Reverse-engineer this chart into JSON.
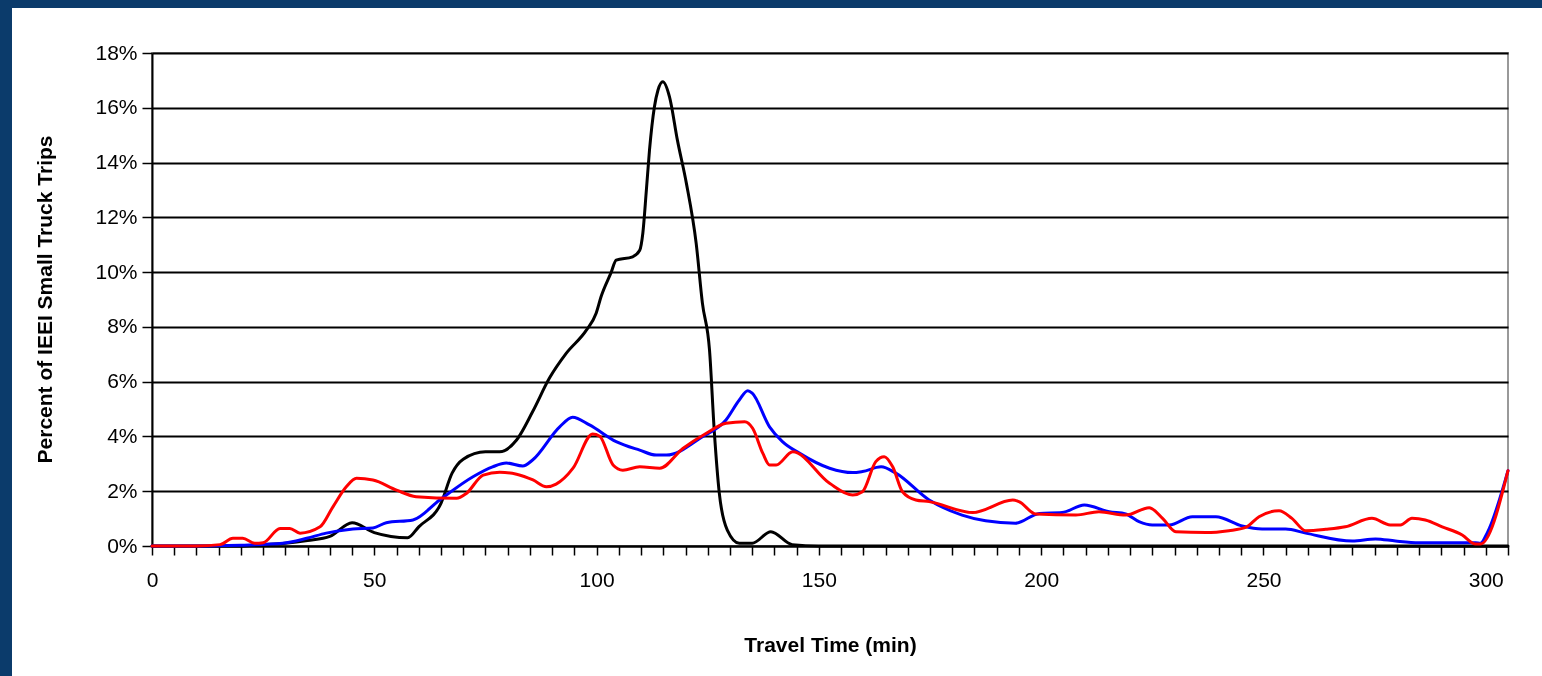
{
  "chart_data": {
    "type": "line",
    "xlabel": "Travel Time (min)",
    "ylabel": "Percent of IEEI Small Truck Trips",
    "xlim": [
      0,
      305
    ],
    "ylim": [
      0,
      18
    ],
    "xticks": [
      0,
      {
        "value": 5,
        "label": null
      },
      {
        "value": 10,
        "label": null
      },
      {
        "value": 15,
        "label": null
      },
      {
        "value": 20,
        "label": null
      },
      {
        "value": 25,
        "label": null
      },
      {
        "value": 30,
        "label": null
      },
      {
        "value": 35,
        "label": null
      },
      {
        "value": 40,
        "label": null
      },
      {
        "value": 45,
        "label": null
      },
      50,
      {
        "value": 55,
        "label": null
      },
      {
        "value": 60,
        "label": null
      },
      {
        "value": 65,
        "label": null
      },
      {
        "value": 70,
        "label": null
      },
      {
        "value": 75,
        "label": null
      },
      {
        "value": 80,
        "label": null
      },
      {
        "value": 85,
        "label": null
      },
      {
        "value": 90,
        "label": null
      },
      {
        "value": 95,
        "label": null
      },
      100,
      {
        "value": 105,
        "label": null
      },
      {
        "value": 110,
        "label": null
      },
      {
        "value": 115,
        "label": null
      },
      {
        "value": 120,
        "label": null
      },
      {
        "value": 125,
        "label": null
      },
      {
        "value": 130,
        "label": null
      },
      {
        "value": 135,
        "label": null
      },
      {
        "value": 140,
        "label": null
      },
      {
        "value": 145,
        "label": null
      },
      150,
      {
        "value": 155,
        "label": null
      },
      {
        "value": 160,
        "label": null
      },
      {
        "value": 165,
        "label": null
      },
      {
        "value": 170,
        "label": null
      },
      {
        "value": 175,
        "label": null
      },
      {
        "value": 180,
        "label": null
      },
      {
        "value": 185,
        "label": null
      },
      {
        "value": 190,
        "label": null
      },
      {
        "value": 195,
        "label": null
      },
      200,
      {
        "value": 205,
        "label": null
      },
      {
        "value": 210,
        "label": null
      },
      {
        "value": 215,
        "label": null
      },
      {
        "value": 220,
        "label": null
      },
      {
        "value": 225,
        "label": null
      },
      {
        "value": 230,
        "label": null
      },
      {
        "value": 235,
        "label": null
      },
      {
        "value": 240,
        "label": null
      },
      {
        "value": 245,
        "label": null
      },
      250,
      {
        "value": 255,
        "label": null
      },
      {
        "value": 260,
        "label": null
      },
      {
        "value": 265,
        "label": null
      },
      {
        "value": 270,
        "label": null
      },
      {
        "value": 275,
        "label": null
      },
      {
        "value": 280,
        "label": null
      },
      {
        "value": 285,
        "label": null
      },
      {
        "value": 290,
        "label": null
      },
      {
        "value": 295,
        "label": null
      },
      300,
      {
        "value": 305,
        "label": null
      }
    ],
    "yticks": [
      {
        "value": 0,
        "label": "0%"
      },
      {
        "value": 2,
        "label": "2%"
      },
      {
        "value": 4,
        "label": "4%"
      },
      {
        "value": 6,
        "label": "6%"
      },
      {
        "value": 8,
        "label": "8%"
      },
      {
        "value": 10,
        "label": "10%"
      },
      {
        "value": 12,
        "label": "12%"
      },
      {
        "value": 14,
        "label": "14%"
      },
      {
        "value": 16,
        "label": "16%"
      },
      {
        "value": 18,
        "label": "18%"
      }
    ],
    "grid": "y",
    "series": [
      {
        "color": "#000000",
        "x": [
          0,
          10,
          20,
          25,
          30,
          35,
          40,
          45,
          50,
          57.5,
          60,
          65,
          67.5,
          70,
          75,
          78.2,
          82,
          85.6,
          89.4,
          93.2,
          97.7,
          99.9,
          101,
          103.3,
          104.4,
          108.1,
          109.7,
          110.4,
          111.2,
          111.9,
          113,
          113.8,
          114.9,
          116.4,
          118.2,
          120.2,
          122.4,
          123.8,
          125.4,
          126.5,
          127.6,
          129.4,
          132.1,
          135,
          139.2,
          144,
          150,
          200,
          250,
          305
        ],
        "values": [
          0,
          0,
          0,
          0.05,
          0.1,
          0.2,
          0.35,
          0.85,
          0.49,
          0.3,
          0.7,
          1.56,
          2.66,
          3.17,
          3.44,
          3.44,
          3.87,
          4.9,
          6.13,
          7.04,
          7.88,
          8.5,
          9.1,
          10.0,
          10.44,
          10.56,
          10.8,
          11.42,
          13.0,
          14.45,
          16.03,
          16.64,
          16.95,
          16.4,
          14.8,
          13.24,
          11.05,
          8.87,
          7.15,
          4.12,
          1.93,
          0.58,
          0.1,
          0.1,
          0.52,
          0.05,
          0,
          0,
          0,
          0
        ]
      },
      {
        "color": "#0000ff",
        "x": [
          0,
          10,
          20,
          29.4,
          34.8,
          39.2,
          45.2,
          49.7,
          52.7,
          58.7,
          64.7,
          72.2,
          76.6,
          79.7,
          83.4,
          85.6,
          91.7,
          94.6,
          98.4,
          104.4,
          109.7,
          113.4,
          115.7,
          123.8,
          129.1,
          132.1,
          134,
          135,
          138.9,
          141.8,
          145.6,
          152.4,
          157.6,
          159.8,
          164,
          167.3,
          174.8,
          182.2,
          187.5,
          194.2,
          199.6,
          204.7,
          209.7,
          215.3,
          219,
          222,
          225,
          228.8,
          234,
          239.3,
          245.2,
          249.7,
          255,
          259.5,
          270,
          275.2,
          279.7,
          285,
          297.7,
          298.8,
          300.3,
          305
        ],
        "values": [
          0,
          0,
          0.03,
          0.1,
          0.28,
          0.47,
          0.62,
          0.66,
          0.85,
          0.95,
          1.68,
          2.53,
          2.89,
          3.03,
          2.92,
          3.14,
          4.35,
          4.7,
          4.42,
          3.81,
          3.5,
          3.32,
          3.32,
          3.99,
          4.6,
          5.33,
          5.67,
          5.58,
          4.35,
          3.81,
          3.39,
          2.84,
          2.68,
          2.72,
          2.89,
          2.66,
          1.68,
          1.13,
          0.92,
          0.83,
          1.19,
          1.22,
          1.5,
          1.25,
          1.17,
          0.89,
          0.77,
          0.77,
          1.07,
          1.07,
          0.73,
          0.62,
          0.62,
          0.47,
          0.18,
          0.26,
          0.18,
          0.12,
          0.12,
          0.1,
          0.47,
          2.75
        ]
      },
      {
        "color": "#ff0000",
        "x": [
          0,
          10,
          15.3,
          18.2,
          20.4,
          23.1,
          25,
          28.8,
          31,
          33.3,
          37.8,
          40.7,
          43.7,
          46,
          49.7,
          55,
          59.4,
          68.5,
          70.7,
          74.5,
          78.2,
          82,
          85.7,
          88.7,
          90.9,
          94.7,
          99.1,
          100.7,
          103.7,
          105.9,
          109.7,
          114.2,
          119.4,
          124.6,
          129.1,
          133.3,
          135.1,
          137.4,
          138.9,
          140.4,
          144.1,
          152.4,
          157.6,
          159.8,
          162.8,
          164.7,
          166.6,
          168.8,
          171.8,
          174.8,
          184.6,
          193.6,
          195,
          198.8,
          207.8,
          213,
          219,
          224.3,
          227.3,
          230.3,
          237,
          242.2,
          246,
          249,
          253.5,
          256.4,
          259.5,
          264,
          268.4,
          274.4,
          278.5,
          280.8,
          283.4,
          286.4,
          290.2,
          294.7,
          297.7,
          298.8,
          305
        ],
        "values": [
          0,
          0,
          0.05,
          0.28,
          0.28,
          0.1,
          0.12,
          0.64,
          0.64,
          0.47,
          0.7,
          1.43,
          2.16,
          2.47,
          2.41,
          2.04,
          1.8,
          1.74,
          1.92,
          2.59,
          2.69,
          2.62,
          2.41,
          2.16,
          2.26,
          2.84,
          4.09,
          4.01,
          2.96,
          2.77,
          2.89,
          2.84,
          3.56,
          4.11,
          4.48,
          4.54,
          4.3,
          3.38,
          2.96,
          2.96,
          3.44,
          2.29,
          1.86,
          1.98,
          3.08,
          3.26,
          2.89,
          1.98,
          1.68,
          1.62,
          1.22,
          1.68,
          1.62,
          1.17,
          1.13,
          1.25,
          1.13,
          1.4,
          1.01,
          0.52,
          0.49,
          0.56,
          0.68,
          1.07,
          1.29,
          1.01,
          0.56,
          0.61,
          0.7,
          1.01,
          0.77,
          0.77,
          1.01,
          0.95,
          0.7,
          0.4,
          0.07,
          0.07,
          2.75
        ]
      }
    ]
  }
}
